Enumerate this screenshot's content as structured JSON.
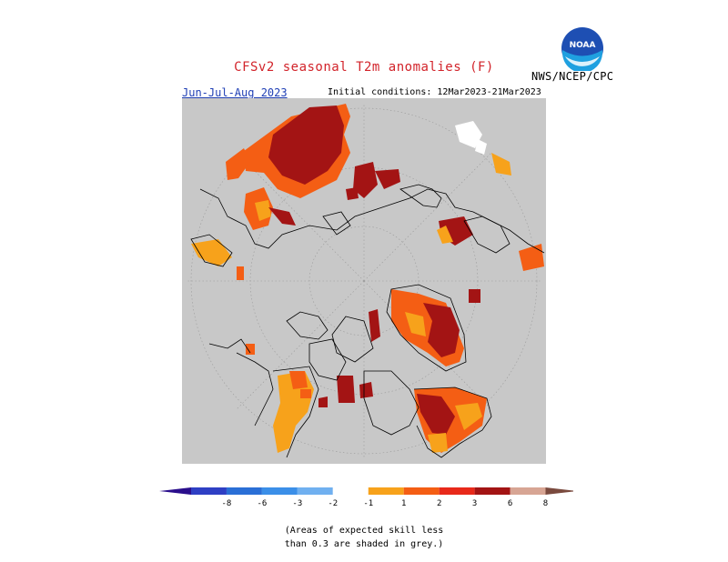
{
  "header": {
    "title": "CFSv2 seasonal T2m anomalies (F)",
    "agency": "NWS/NCEP/CPC",
    "season": "Jun-Jul-Aug 2023",
    "initial_conditions": "Initial conditions: 12Mar2023-21Mar2023",
    "logo_text": "NOAA"
  },
  "colorbar": {
    "labels": [
      "-8",
      "-6",
      "-3",
      "-2",
      "-1",
      "1",
      "2",
      "3",
      "6",
      "8"
    ],
    "colors": [
      "#2a0e8c",
      "#2e3fc4",
      "#2a6fd6",
      "#3b8fe8",
      "#70b0f0",
      "#ffffff",
      "#f7a21b",
      "#f45e14",
      "#e8291a",
      "#a31414",
      "#d7a594",
      "#7a4a3e"
    ]
  },
  "footnote": {
    "line1": "(Areas of expected skill less",
    "line2": "than 0.3 are shaded in grey.)"
  },
  "map": {
    "background_color": "#c8c8c8",
    "legend_colors": {
      "1_to_2": "#f7a21b",
      "2_to_3": "#f45e14",
      "3_to_6": "#a31414",
      "skill_missing": "#ffffff"
    }
  }
}
